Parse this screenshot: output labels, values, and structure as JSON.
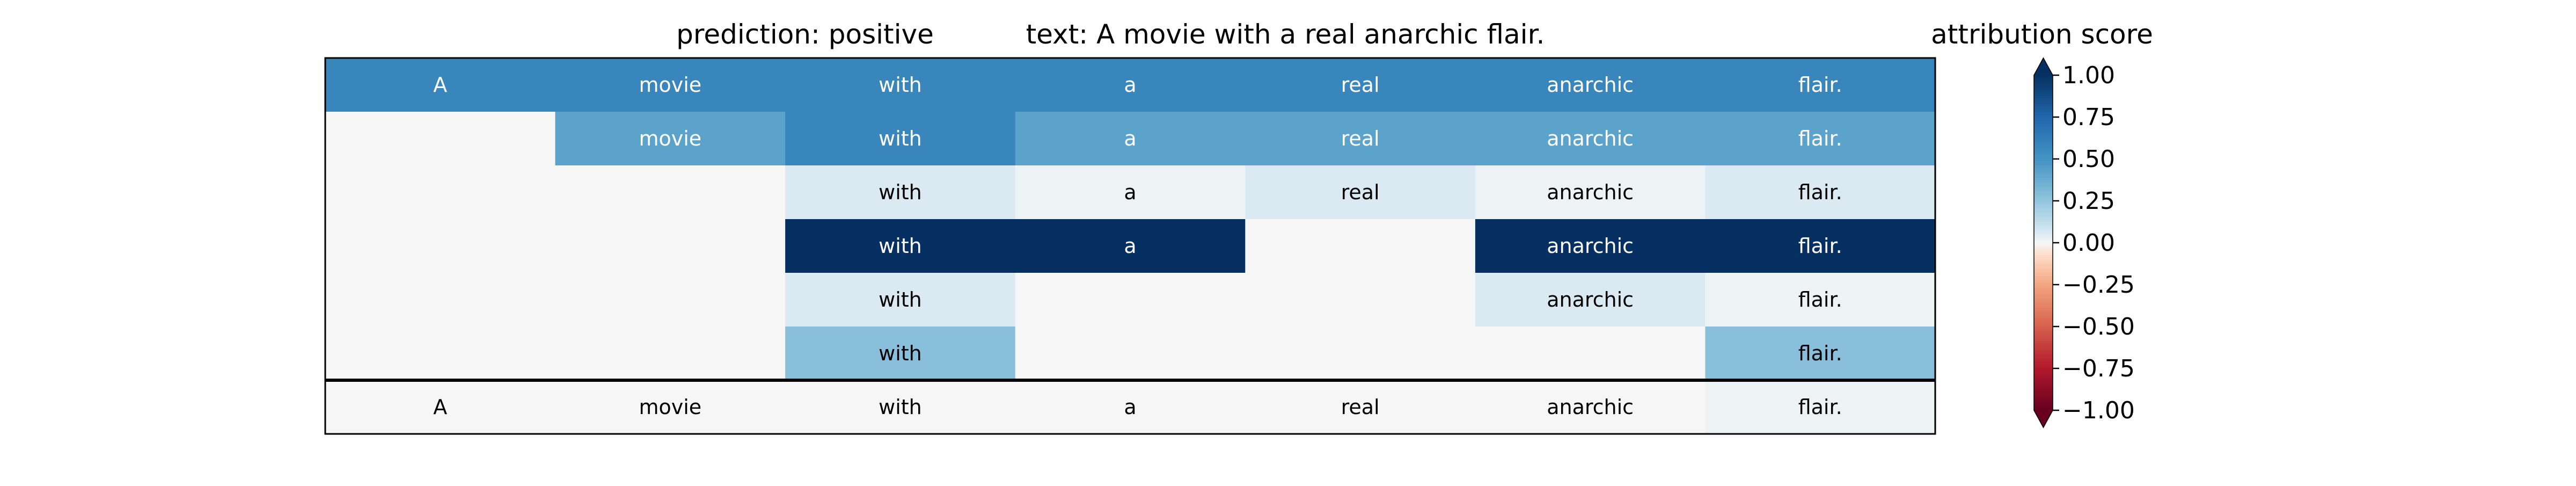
{
  "chart_data": {
    "type": "heatmap",
    "title_left": "prediction:  positive",
    "title_right": "text:  A movie with a real anarchic flair.",
    "colorbar_label": "attribution score",
    "tokens": [
      "A",
      "movie",
      "with",
      "a",
      "real",
      "anarchic",
      "flair."
    ],
    "rows": [
      [
        0.57,
        0.57,
        0.57,
        0.57,
        0.57,
        0.57,
        0.57
      ],
      [
        null,
        0.42,
        0.57,
        0.42,
        0.42,
        0.42,
        0.42
      ],
      [
        null,
        null,
        0.06,
        0.02,
        0.06,
        0.02,
        0.06
      ],
      [
        null,
        null,
        1.0,
        1.0,
        null,
        1.0,
        1.0
      ],
      [
        null,
        null,
        0.06,
        null,
        null,
        0.06,
        0.02
      ],
      [
        null,
        null,
        0.28,
        null,
        null,
        null,
        0.28
      ]
    ],
    "baseline_row": [
      0.0,
      0.0,
      0.0,
      0.0,
      0.0,
      0.0,
      0.02
    ],
    "colorbar": {
      "vmin": -1.0,
      "vmax": 1.0,
      "colormap": "RdBu",
      "ticks": [
        "1.00",
        "0.75",
        "0.50",
        "0.25",
        "0.00",
        "−0.25",
        "−0.50",
        "−0.75",
        "−1.00"
      ],
      "tick_values": [
        1.0,
        0.75,
        0.5,
        0.25,
        0.0,
        -0.25,
        -0.5,
        -0.75,
        -1.0
      ]
    }
  }
}
